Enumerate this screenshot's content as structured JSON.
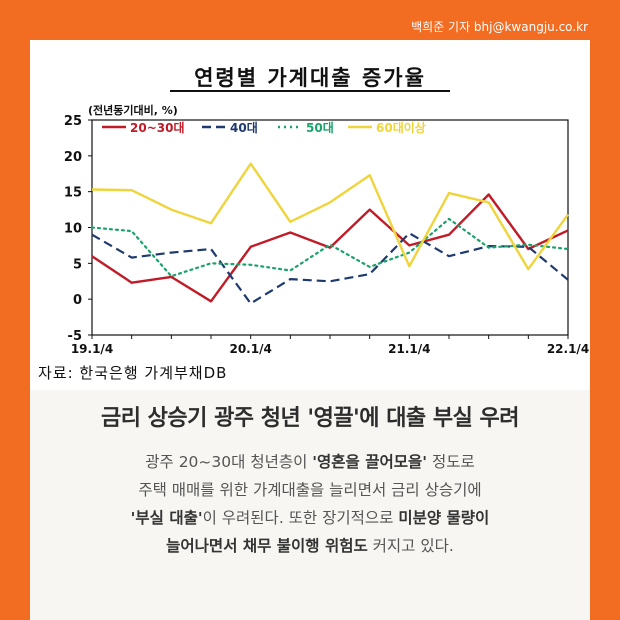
{
  "credit": "백희준 기자 bhj@kwangju.co.kr",
  "chart_data": {
    "type": "line",
    "title": "연령별 가계대출 증가율",
    "unit_label": "(전년동기대비, %)",
    "x_ticks": [
      "19.1/4",
      "20.1/4",
      "21.1/4",
      "22.1/4"
    ],
    "x": [
      "19.1/4",
      "19.2/4",
      "19.3/4",
      "19.4/4",
      "20.1/4",
      "20.2/4",
      "20.3/4",
      "20.4/4",
      "21.1/4",
      "21.2/4",
      "21.3/4",
      "21.4/4",
      "22.1/4"
    ],
    "ylim": [
      -5,
      25
    ],
    "y_ticks": [
      25,
      20,
      15,
      10,
      5,
      0,
      -5
    ],
    "legend_position": "top",
    "series": [
      {
        "name": "20~30대",
        "color": "#c01c28",
        "dash": "solid",
        "values": [
          6.0,
          2.3,
          3.1,
          -0.3,
          7.3,
          9.3,
          7.2,
          12.5,
          7.5,
          9.0,
          14.6,
          7.0,
          9.6
        ]
      },
      {
        "name": "40대",
        "color": "#1f3a6e",
        "dash": "dashed",
        "values": [
          9.0,
          5.8,
          6.5,
          7.0,
          -0.6,
          2.8,
          2.5,
          3.5,
          9.2,
          6.0,
          7.4,
          7.3,
          2.7
        ]
      },
      {
        "name": "50대",
        "color": "#1aa36a",
        "dash": "dotted",
        "values": [
          10.0,
          9.5,
          3.2,
          5.0,
          4.8,
          4.0,
          7.6,
          4.5,
          6.5,
          11.2,
          7.2,
          7.6,
          7.0
        ]
      },
      {
        "name": "60대이상",
        "color": "#efd43c",
        "dash": "solid",
        "values": [
          15.3,
          15.2,
          12.5,
          10.6,
          18.9,
          10.8,
          13.5,
          17.3,
          4.6,
          14.8,
          13.5,
          4.2,
          11.8
        ]
      }
    ]
  },
  "source": "자료: 한국은행 가계부채DB",
  "headline": "금리 상승기 광주 청년 '영끌'에 대출 부실 우려",
  "body_lines": [
    [
      "광주 20~30대 청년층이 ",
      "'영혼을 끌어모을'",
      " 정도로"
    ],
    [
      "주택 매매를 위한 가계대출을 늘리면서 금리 상승기에"
    ],
    [
      "'부실 대출'",
      "이 우려된다. 또한 장기적으로 ",
      "미분양 물량이"
    ],
    [
      "늘어나면서 채무 불이행 위험도",
      " 커지고 있다."
    ]
  ]
}
